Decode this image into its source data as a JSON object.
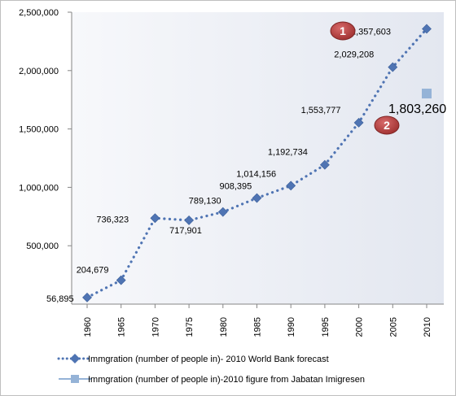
{
  "chart_data": {
    "type": "line",
    "title": "",
    "xlabel": "",
    "ylabel": "",
    "x": [
      "1960",
      "1965",
      "1970",
      "1975",
      "1980",
      "1985",
      "1990",
      "1995",
      "2000",
      "2005",
      "2010"
    ],
    "ylim": [
      0,
      2500000
    ],
    "yticks": [
      "500,000",
      "1,000,000",
      "1,500,000",
      "2,000,000",
      "2,500,000"
    ],
    "grid": false,
    "legend_position": "bottom",
    "series": [
      {
        "name": "Immgration  (number of people in)- 2010 World Bank forecast",
        "style": "dotted line with diamond markers",
        "color": "#4f74b3",
        "values": [
          56895,
          204679,
          736323,
          717901,
          789130,
          908395,
          1014156,
          1192734,
          1553777,
          2029208,
          2357603
        ],
        "value_labels": [
          "56,895",
          "204,679",
          "736,323",
          "717,901",
          "789,130",
          "908,395",
          "1,014,156",
          "1,192,734",
          "1,553,777",
          "2,029,208",
          "2,357,603"
        ]
      },
      {
        "name": "Immgration  (number of people in)-2010 figure from Jabatan  Imigresen",
        "style": "square marker",
        "color": "#95b3d7",
        "points": [
          {
            "x": "2010",
            "y": 1803260
          }
        ],
        "value_labels": [
          "1,803,260"
        ]
      }
    ],
    "annotations": [
      {
        "text": "1",
        "color": "#b03a3a"
      },
      {
        "text": "2",
        "color": "#b03a3a"
      }
    ]
  }
}
